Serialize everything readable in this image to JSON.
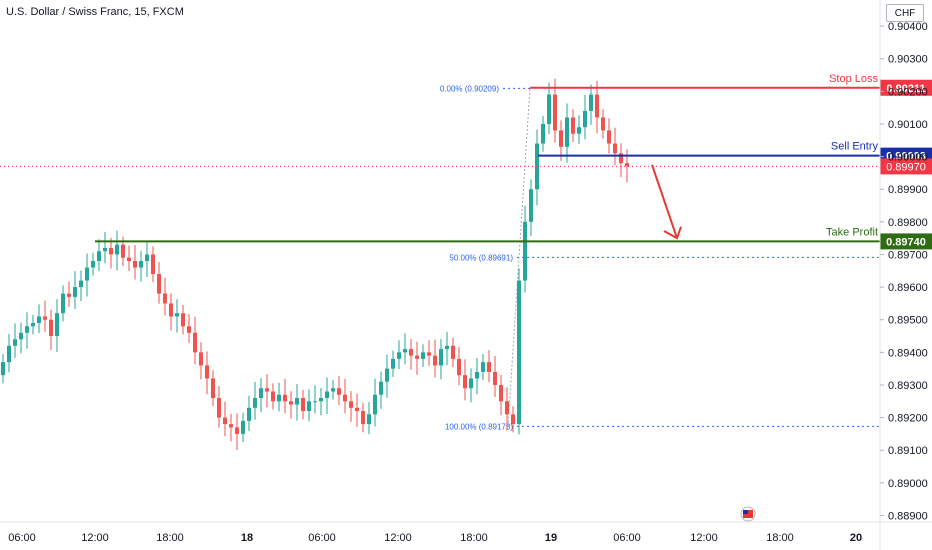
{
  "title": "U.S. Dollar / Swiss Franc, 15, FXCM",
  "currency": "CHF",
  "colors": {
    "up": "#26a69a",
    "down": "#ef5350",
    "stop_loss": "#f23645",
    "sell_entry": "#1a2ea8",
    "take_profit": "#2e6b12",
    "fib": "#2962ff",
    "current_price": "#f23645",
    "arrow": "#e53935"
  },
  "chart_data": {
    "type": "candlestick",
    "symbol": "USDCHF",
    "timeframe": "15",
    "ylim": [
      0.8888,
      0.9048
    ],
    "y_ticks": [
      "0.90400",
      "0.90300",
      "0.90200",
      "0.90100",
      "0.90000",
      "0.89900",
      "0.89800",
      "0.89700",
      "0.89600",
      "0.89500",
      "0.89400",
      "0.89300",
      "0.89200",
      "0.89100",
      "0.89000",
      "0.88900"
    ],
    "x_ticks": [
      "06:00",
      "12:00",
      "18:00",
      "18",
      "06:00",
      "12:00",
      "18:00",
      "19",
      "06:00",
      "12:00",
      "18:00",
      "20"
    ],
    "x_tick_bold": [
      "18",
      "19",
      "20"
    ],
    "price_series": [
      0.8937,
      0.8942,
      0.8944,
      0.8946,
      0.8948,
      0.8949,
      0.8951,
      0.895,
      0.8945,
      0.8952,
      0.8958,
      0.8957,
      0.896,
      0.8962,
      0.8966,
      0.8968,
      0.8971,
      0.8972,
      0.897,
      0.8973,
      0.8969,
      0.8968,
      0.8966,
      0.8968,
      0.897,
      0.8964,
      0.8958,
      0.8955,
      0.8951,
      0.8952,
      0.8948,
      0.8946,
      0.894,
      0.8936,
      0.8932,
      0.8926,
      0.892,
      0.8918,
      0.8917,
      0.8915,
      0.8919,
      0.8923,
      0.8926,
      0.8929,
      0.8928,
      0.8925,
      0.8927,
      0.8925,
      0.8924,
      0.8926,
      0.8922,
      0.8925,
      0.8925,
      0.8926,
      0.8928,
      0.8929,
      0.8927,
      0.8925,
      0.8923,
      0.8922,
      0.8918,
      0.8921,
      0.8927,
      0.8931,
      0.8935,
      0.8938,
      0.894,
      0.8941,
      0.8939,
      0.8938,
      0.894,
      0.8939,
      0.8936,
      0.8941,
      0.8942,
      0.8938,
      0.8933,
      0.8929,
      0.8932,
      0.8934,
      0.8937,
      0.8934,
      0.893,
      0.8925,
      0.8921,
      0.8918,
      0.8962,
      0.898,
      0.899,
      0.9004,
      0.901,
      0.9019,
      0.9008,
      0.9003,
      0.9012,
      0.9007,
      0.9009,
      0.9014,
      0.9019,
      0.9012,
      0.9008,
      0.9004,
      0.9001,
      0.8998,
      0.8997
    ],
    "levels": [
      {
        "label": "Stop Loss",
        "value": 0.90211,
        "value_text": "0.90211"
      },
      {
        "label": "Sell Entry",
        "value": 0.90003,
        "value_text": "0.90003"
      },
      {
        "label": "Take Profit",
        "value": 0.8974,
        "value_text": "0.89740"
      }
    ],
    "current_price": {
      "value": 0.8997,
      "value_text": "0.89970"
    },
    "fib_levels": [
      {
        "label": "0.00% (0.90209)",
        "value": 0.90209
      },
      {
        "label": "50.00% (0.89691)",
        "value": 0.89691
      },
      {
        "label": "100.00% (0.89173)",
        "value": 0.89173
      }
    ],
    "annotation": "downward arrow toward take profit"
  }
}
